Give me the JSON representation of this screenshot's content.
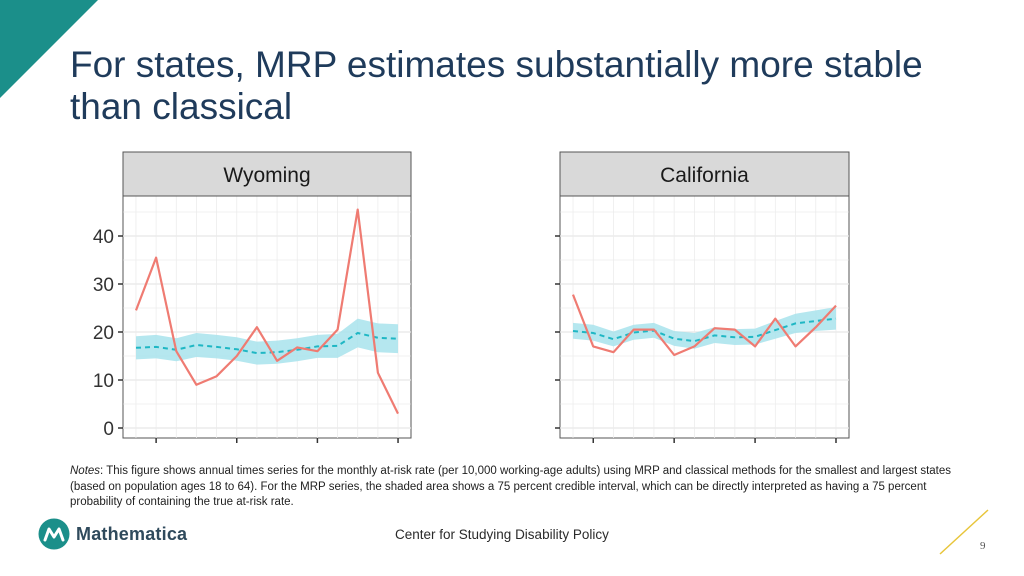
{
  "slide": {
    "title": "For states, MRP estimates substantially more stable than classical",
    "notes_label": "Notes",
    "notes_text": ": This figure shows annual times series for the monthly at-risk rate (per 10,000 working-age adults) using MRP and classical methods for the smallest and largest states (based on population ages 18 to 64). For the MRP series, the shaded area shows a 75 percent credible interval, which can be directly interpreted as having a 75 percent probability of containing the true at-risk rate.",
    "logo_text": "Mathematica",
    "footer_center": "Center for Studying Disability Policy",
    "page_number": "9",
    "colors": {
      "title": "#1f3b5b",
      "accent_teal": "#1b8f8a",
      "accent_gold": "#e8c53a",
      "classical_line": "#ef7b72",
      "mrp_line": "#1fb7c4",
      "mrp_band": "#a8e3ec"
    },
    "icons": [
      "teal-corner-triangle",
      "mathematica-logo-icon",
      "gold-slash-line"
    ]
  },
  "chart_data": [
    {
      "type": "line",
      "panel_title": "Wyoming",
      "x": [
        1,
        2,
        3,
        4,
        5,
        6,
        7,
        8,
        9,
        10,
        11,
        12,
        13,
        14
      ],
      "ylim": [
        0,
        48
      ],
      "y_ticks": [
        0,
        10,
        20,
        30,
        40
      ],
      "show_y_tick_labels": true,
      "grid": true,
      "series": [
        {
          "style": "solid",
          "values": [
            24.5,
            35.5,
            16,
            9,
            10.8,
            15,
            21,
            14,
            16.8,
            16,
            20.5,
            45.5,
            11.5,
            3
          ]
        },
        {
          "style": "dashed",
          "values": [
            16.7,
            16.9,
            16.3,
            17.3,
            16.9,
            16.4,
            15.6,
            15.8,
            16.3,
            17,
            17.1,
            19.8,
            18.8,
            18.6
          ],
          "band_low": [
            14.3,
            14.5,
            13.9,
            14.8,
            14.5,
            14.0,
            13.2,
            13.4,
            13.9,
            14.6,
            14.6,
            16.8,
            15.8,
            15.6
          ],
          "band_high": [
            19.1,
            19.4,
            18.7,
            19.8,
            19.4,
            18.9,
            18.0,
            18.2,
            18.7,
            19.4,
            19.6,
            22.8,
            21.8,
            21.6
          ]
        }
      ]
    },
    {
      "type": "line",
      "panel_title": "California",
      "x": [
        1,
        2,
        3,
        4,
        5,
        6,
        7,
        8,
        9,
        10,
        11,
        12,
        13,
        14
      ],
      "ylim": [
        0,
        48
      ],
      "y_ticks": [
        0,
        10,
        20,
        30,
        40
      ],
      "show_y_tick_labels": false,
      "grid": true,
      "series": [
        {
          "style": "solid",
          "values": [
            27.8,
            17,
            15.8,
            20.5,
            20.5,
            15.2,
            17,
            20.8,
            20.5,
            17,
            22.8,
            17,
            21,
            25.5
          ]
        },
        {
          "style": "dashed",
          "values": [
            20.2,
            19.8,
            18.5,
            19.9,
            20.3,
            18.6,
            18.1,
            19.3,
            18.9,
            19.0,
            20.4,
            21.8,
            22.3,
            22.8
          ],
          "band_low": [
            18.6,
            18.2,
            17.0,
            18.4,
            18.8,
            17.1,
            16.5,
            17.7,
            17.3,
            17.4,
            18.6,
            19.8,
            20.2,
            20.5
          ],
          "band_high": [
            21.9,
            21.5,
            20.1,
            21.5,
            21.9,
            20.2,
            19.8,
            21.0,
            20.6,
            20.7,
            22.3,
            23.8,
            24.5,
            25.2
          ]
        }
      ]
    }
  ]
}
